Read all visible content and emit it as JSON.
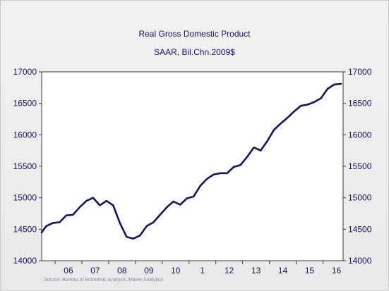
{
  "chart_data": {
    "type": "line",
    "title": "Real Gross Domestic Product",
    "subtitle": "SAAR, Bil.Chn.2009$",
    "ylim": [
      14000,
      17000
    ],
    "yticks": [
      14000,
      14500,
      15000,
      15500,
      16000,
      16500,
      17000
    ],
    "xlim": [
      2005.5,
      2016.75
    ],
    "xtick_labels": [
      "06",
      "07",
      "08",
      "09",
      "10",
      "1",
      "12",
      "13",
      "14",
      "15",
      "16"
    ],
    "grid": false,
    "color": "#14145a",
    "series": [
      {
        "x": [
          2005.5,
          2005.67,
          2005.92,
          2006.17,
          2006.42,
          2006.67,
          2006.92,
          2007.17,
          2007.42,
          2007.67,
          2007.92,
          2008.17,
          2008.42,
          2008.67,
          2008.92,
          2009.17,
          2009.42,
          2009.67,
          2009.92,
          2010.17,
          2010.42,
          2010.67,
          2010.92,
          2011.17,
          2011.42,
          2011.67,
          2011.92,
          2012.17,
          2012.42,
          2012.67,
          2012.92,
          2013.17,
          2013.42,
          2013.67,
          2013.92,
          2014.17,
          2014.42,
          2014.67,
          2014.92,
          2015.17,
          2015.42,
          2015.67,
          2015.92,
          2016.17,
          2016.42,
          2016.67
        ],
        "values": [
          14450,
          14550,
          14600,
          14610,
          14720,
          14730,
          14850,
          14950,
          15000,
          14880,
          14950,
          14880,
          14600,
          14380,
          14350,
          14400,
          14550,
          14610,
          14730,
          14850,
          14940,
          14890,
          14990,
          15020,
          15190,
          15300,
          15370,
          15390,
          15390,
          15490,
          15520,
          15650,
          15800,
          15750,
          15900,
          16080,
          16180,
          16270,
          16370,
          16460,
          16480,
          16520,
          16580,
          16730,
          16800,
          16810
        ]
      }
    ]
  },
  "source": "Source:  Bureau of Economic Analysis /Haver Analytics"
}
